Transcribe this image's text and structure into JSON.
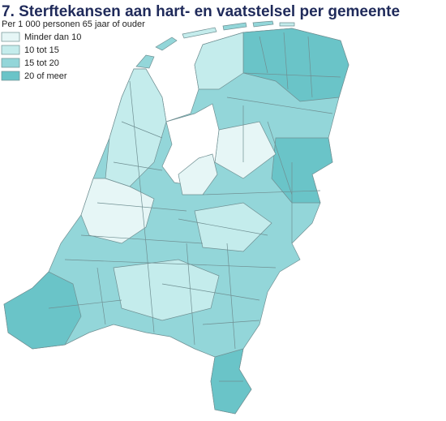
{
  "title": "7. Sterftekansen aan hart- en vaatstelsel per gemeente",
  "subtitle": "Per 1 000 personen 65 jaar of ouder",
  "legend": [
    {
      "label": "Minder dan 10",
      "color": "#e6f6f6"
    },
    {
      "label": "10 tot 15",
      "color": "#c4ecec"
    },
    {
      "label": "15 tot 20",
      "color": "#93d6d9"
    },
    {
      "label": "20 of meer",
      "color": "#6ac4c8"
    }
  ]
}
